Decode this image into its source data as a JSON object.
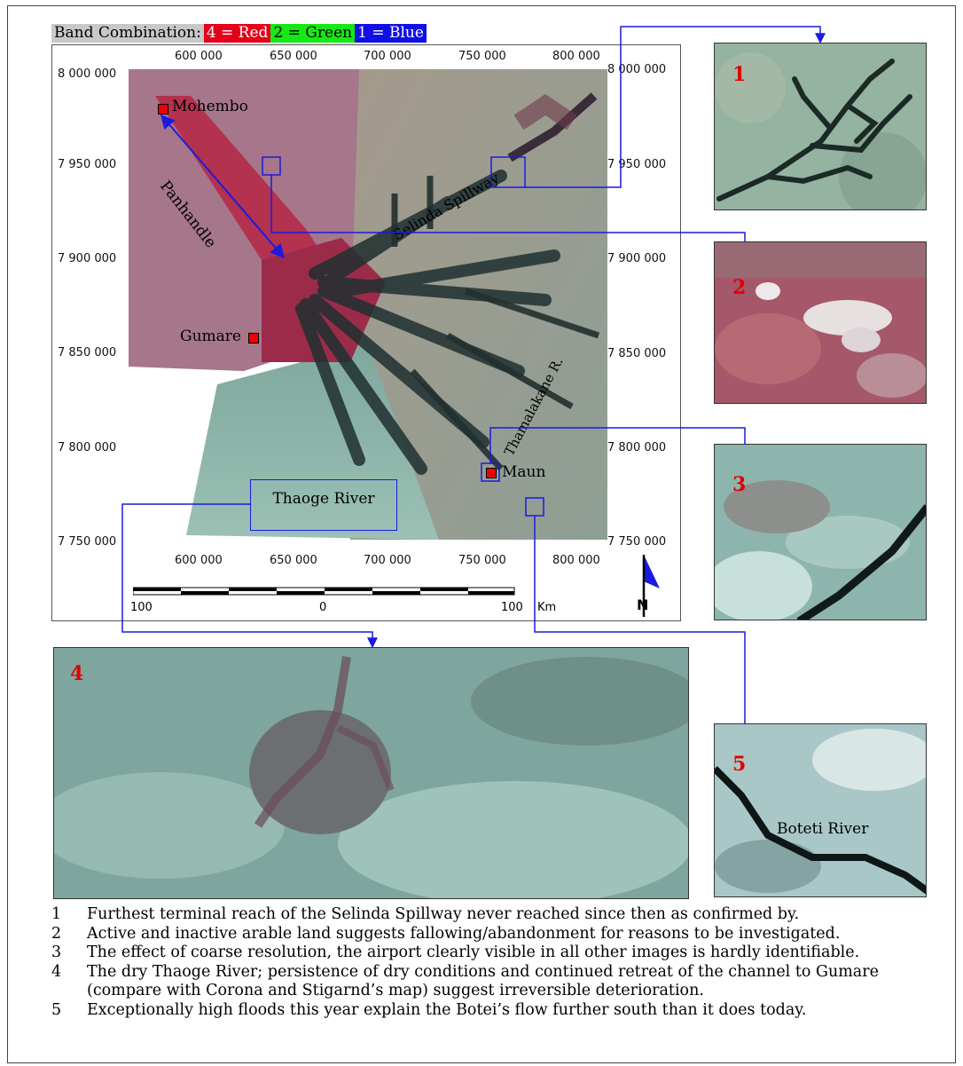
{
  "legend": {
    "title": "Band Combination:",
    "red": "4 = Red",
    "green": "2 = Green",
    "blue": "1 = Blue",
    "colors": {
      "red": "#e5001a",
      "green": "#15e815",
      "blue": "#1010e6"
    }
  },
  "map": {
    "x_ticks": [
      "600 000",
      "650 000",
      "700 000",
      "750 000",
      "800 000"
    ],
    "y_ticks": [
      "8 000 000",
      "7 950 000",
      "7 900 000",
      "7 850 000",
      "7 800 000",
      "7 750 000"
    ],
    "labels": {
      "mohembo": "Mohembo",
      "panhandle": "Panhandle",
      "selinda": "Selinda Spillway",
      "gumare": "Gumare",
      "maun": "Maun",
      "thamalakane": "Thamalakane R.",
      "thaoge": "Thaoge River"
    },
    "scale": {
      "left": "100",
      "mid": "0",
      "right": "100",
      "unit": "Km"
    },
    "north": "N"
  },
  "insets": [
    {
      "num": "1"
    },
    {
      "num": "2"
    },
    {
      "num": "3"
    },
    {
      "num": "4"
    },
    {
      "num": "5",
      "label": "Boteti River"
    }
  ],
  "notes": [
    {
      "n": "1",
      "text": "Furthest terminal reach of the Selinda Spillway never reached since then as confirmed by."
    },
    {
      "n": "2",
      "text": "Active and inactive arable land suggests fallowing/abandonment for reasons to be investigated."
    },
    {
      "n": "3",
      "text": "The effect of coarse resolution, the airport clearly visible in all other images is hardly identifiable."
    },
    {
      "n": "4",
      "text": "The dry Thaoge River; persistence of dry conditions and continued retreat of the channel to Gumare (compare with Corona and Stigarnd’s map) suggest irreversible deterioration."
    },
    {
      "n": "5",
      "text": "Exceptionally high floods this year explain the Botei’s flow further south than it does today."
    }
  ]
}
